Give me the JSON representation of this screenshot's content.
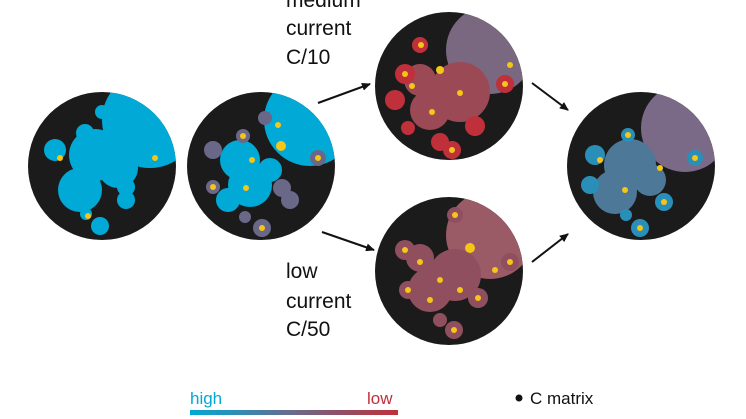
{
  "labels": {
    "medium": {
      "line1": "medium",
      "line2": "current",
      "line3": "C/10"
    },
    "low": {
      "line1": "low",
      "line2": "current",
      "line3": "C/50"
    }
  },
  "legend": {
    "high": "high",
    "low": "low",
    "c_matrix": "C matrix"
  },
  "colors": {
    "background_disk": "#1b1b1b",
    "high": "#00a9d6",
    "low": "#c0303a",
    "carbon": "#f5c518",
    "arrow": "#111111"
  },
  "icons": {
    "c_matrix_marker": "dot-icon"
  }
}
